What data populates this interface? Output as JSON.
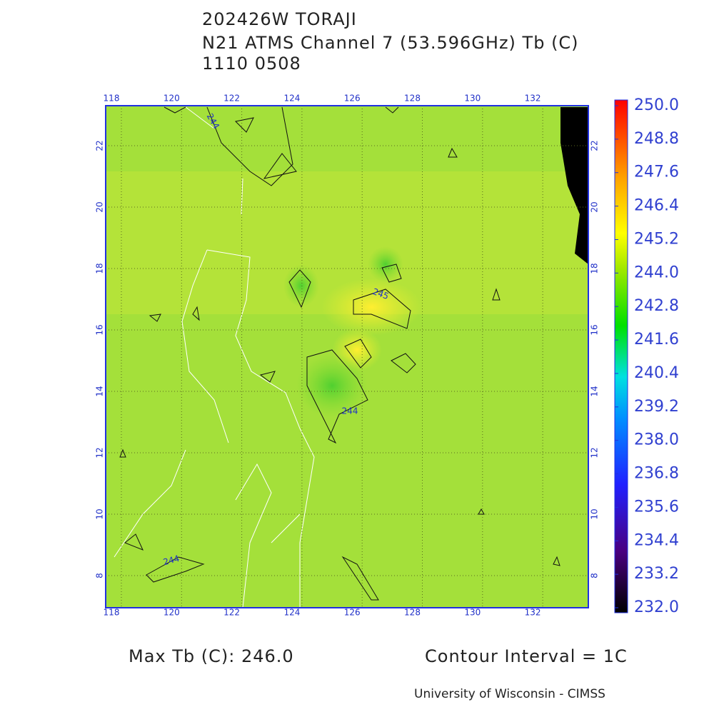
{
  "header": {
    "storm": "202426W TORAJI",
    "product": "N21 ATMS Channel 7 (53.596GHz) Tb (C)",
    "time": "1110 0508"
  },
  "map": {
    "lon_ticks": [
      118,
      120,
      122,
      124,
      126,
      128,
      130,
      132
    ],
    "lat_ticks": [
      8,
      10,
      12,
      14,
      16,
      18,
      20,
      22
    ],
    "contour_labels": [
      "244",
      "245",
      "244",
      "244"
    ]
  },
  "colorbar": {
    "ticks": [
      {
        "value": 250,
        "label": "250.0"
      },
      {
        "value": 248.8,
        "label": "248.8"
      },
      {
        "value": 247.6,
        "label": "247.6"
      },
      {
        "value": 246.4,
        "label": "246.4"
      },
      {
        "value": 245.2,
        "label": "245.2"
      },
      {
        "value": 244,
        "label": "244.0"
      },
      {
        "value": 242.8,
        "label": "242.8"
      },
      {
        "value": 241.6,
        "label": "241.6"
      },
      {
        "value": 240.4,
        "label": "240.4"
      },
      {
        "value": 239.2,
        "label": "239.2"
      },
      {
        "value": 238,
        "label": "238.0"
      },
      {
        "value": 236.8,
        "label": "236.8"
      },
      {
        "value": 235.6,
        "label": "235.6"
      },
      {
        "value": 234.4,
        "label": "234.4"
      },
      {
        "value": 233.2,
        "label": "233.2"
      },
      {
        "value": 232,
        "label": "232.0"
      }
    ]
  },
  "footer": {
    "max_tb": "Max Tb (C): 246.0",
    "contour_interval": "Contour Interval = 1C",
    "credit": "University of Wisconsin - CIMSS"
  }
}
